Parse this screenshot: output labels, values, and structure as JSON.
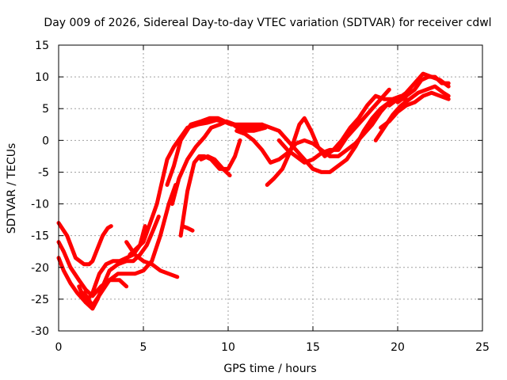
{
  "chart_data": {
    "type": "line",
    "title": "Day 009 of 2026, Sidereal Day-to-day VTEC variation (SDTVAR) for receiver cdwl",
    "xlabel": "GPS time / hours",
    "ylabel": "SDTVAR / TECUs",
    "xlim": [
      0,
      25
    ],
    "ylim": [
      -30,
      15
    ],
    "xticks": [
      "0",
      "5",
      "10",
      "15",
      "20",
      "25"
    ],
    "yticks": [
      "-30",
      "-25",
      "-20",
      "-15",
      "-10",
      "-5",
      "0",
      "5",
      "10",
      "15"
    ],
    "grid": true,
    "legend": "none",
    "color": "#ff0000",
    "series": [
      {
        "name": "trace-1",
        "x": [
          0.0,
          0.5,
          1.0,
          1.5,
          1.8,
          2.0,
          2.3,
          2.6,
          2.9,
          3.1
        ],
        "y": [
          -13,
          -15,
          -18.5,
          -19.5,
          -19.5,
          -19,
          -17,
          -15,
          -13.8,
          -13.5
        ]
      },
      {
        "name": "trace-2",
        "x": [
          0.0,
          0.3,
          0.7,
          1.2,
          1.6,
          2.0,
          2.5,
          3.0,
          3.6,
          4.0
        ],
        "y": [
          -16,
          -17.5,
          -20,
          -22,
          -23.5,
          -24.5,
          -23,
          -22,
          -22,
          -23
        ]
      },
      {
        "name": "trace-3",
        "x": [
          0.0,
          0.3,
          0.7,
          1.1,
          1.6,
          2.0,
          2.3,
          2.6,
          3.0,
          3.5,
          4.0,
          4.4,
          4.8,
          5.2,
          5.6,
          5.9
        ],
        "y": [
          -18.5,
          -20.5,
          -22.5,
          -24,
          -25.5,
          -26.5,
          -25,
          -23,
          -20.5,
          -19.5,
          -19,
          -19,
          -18,
          -16.5,
          -14,
          -12
        ]
      },
      {
        "name": "trace-4",
        "x": [
          1.5,
          2.0,
          2.5,
          3.0,
          3.5,
          4.0,
          4.5,
          5.0,
          5.5,
          6.0,
          6.5,
          6.9
        ],
        "y": [
          -24,
          -26,
          -24,
          -22,
          -21,
          -21,
          -21,
          -20.5,
          -19,
          -15,
          -10,
          -7
        ]
      },
      {
        "name": "trace-5",
        "x": [
          1.2,
          1.6,
          2.0,
          2.4,
          2.8,
          3.2,
          3.6,
          4.0,
          4.4,
          4.8,
          5.1
        ],
        "y": [
          -23,
          -25.5,
          -24,
          -21,
          -19.5,
          -19,
          -19,
          -18.5,
          -18,
          -16.5,
          -13.5
        ]
      },
      {
        "name": "trace-6",
        "x": [
          4.0,
          4.5,
          5.0,
          5.5,
          6.0,
          6.5,
          7.0
        ],
        "y": [
          -16,
          -18,
          -19,
          -19.5,
          -20.5,
          -21,
          -21.5
        ]
      },
      {
        "name": "trace-7",
        "x": [
          4.2,
          4.6,
          5.0,
          5.4,
          5.8,
          6.1,
          6.4,
          6.8,
          7.2,
          7.6,
          8.2,
          8.8,
          9.3,
          9.7,
          10.2,
          10.8,
          11.5,
          12.0
        ],
        "y": [
          -18,
          -17,
          -16,
          -13,
          -10,
          -6.5,
          -3,
          -1,
          0.5,
          2,
          2.5,
          2.8,
          3.2,
          3.0,
          2.5,
          2.5,
          2.5,
          2.5
        ]
      },
      {
        "name": "trace-8",
        "x": [
          6.4,
          6.8,
          7.2,
          7.8,
          8.4,
          8.9,
          9.4,
          9.8,
          10.3,
          10.8,
          11.5,
          12.2
        ],
        "y": [
          -7,
          -4,
          0,
          2.5,
          3.0,
          3.5,
          3.5,
          3.0,
          2.5,
          1.5,
          1.5,
          2.0
        ]
      },
      {
        "name": "trace-9",
        "x": [
          6.7,
          7.1,
          7.6,
          8.1,
          8.6,
          9.0,
          9.5,
          9.9,
          10.4,
          10.9,
          11.5,
          12.0
        ],
        "y": [
          -10,
          -6,
          -3,
          -1,
          0.5,
          2.0,
          2.5,
          3.0,
          2.5,
          2.0,
          2.0,
          2.0
        ]
      },
      {
        "name": "trace-10",
        "x": [
          7.2,
          7.6,
          8.0,
          8.3,
          8.6,
          9.0,
          9.5,
          10.0,
          10.4,
          10.7
        ],
        "y": [
          -15,
          -8,
          -3.5,
          -2.5,
          -2.5,
          -3.0,
          -4.5,
          -4.5,
          -2.5,
          0.0
        ]
      },
      {
        "name": "trace-11",
        "x": [
          7.3,
          7.6,
          7.9
        ],
        "y": [
          -13.5,
          -13.8,
          -14.2
        ]
      },
      {
        "name": "trace-12",
        "x": [
          8.4,
          8.8,
          9.2,
          9.7,
          10.1
        ],
        "y": [
          -3,
          -2.5,
          -3,
          -4.5,
          -5.5
        ]
      },
      {
        "name": "trace-13",
        "x": [
          10.5,
          11.0,
          11.5,
          12.0,
          12.5,
          13.0,
          13.5,
          14.0,
          14.5,
          15.0,
          15.5,
          16.0,
          16.5,
          17.0,
          17.5,
          18.0,
          18.5,
          19.0,
          19.5,
          20.0
        ],
        "y": [
          1.5,
          1.0,
          0.0,
          -1.5,
          -3.5,
          -3.0,
          -2.0,
          -0.5,
          0.0,
          -0.5,
          -1.5,
          -2.5,
          -2.5,
          -1.5,
          -0.5,
          1.0,
          2.5,
          4.5,
          6.0,
          6.5
        ]
      },
      {
        "name": "trace-14",
        "x": [
          11.5,
          12.0,
          12.5,
          13.0,
          13.5,
          14.0,
          14.5,
          15.0,
          15.5,
          16.0,
          16.5,
          17.0,
          17.5,
          18.0,
          18.5,
          19.0,
          19.5,
          20.0,
          20.5
        ],
        "y": [
          2.0,
          2.5,
          2.0,
          1.5,
          0.0,
          -1.5,
          -3.0,
          -4.5,
          -5.0,
          -5.0,
          -4.0,
          -3.0,
          -1.0,
          1.5,
          3.5,
          5.0,
          6.0,
          6.5,
          6.5
        ]
      },
      {
        "name": "trace-15",
        "x": [
          12.3,
          12.7,
          13.2,
          13.7,
          14.2,
          14.5,
          14.9,
          15.3,
          15.7,
          16.2,
          16.7,
          17.2,
          17.7,
          18.2,
          18.7,
          19.2,
          19.7,
          20.2
        ],
        "y": [
          -7.0,
          -6.0,
          -4.5,
          -1.5,
          2.5,
          3.5,
          1.5,
          -1.0,
          -2.5,
          -1.5,
          0.0,
          2.0,
          3.5,
          5.5,
          7.0,
          6.5,
          6.5,
          7.0
        ]
      },
      {
        "name": "trace-16",
        "x": [
          13.0,
          13.5,
          14.0,
          14.5,
          15.0,
          15.5,
          16.0,
          16.5,
          17.0,
          17.5,
          18.0,
          18.5,
          19.0,
          19.5
        ],
        "y": [
          0.0,
          -1.5,
          -2.5,
          -3.5,
          -3.0,
          -2.0,
          -1.5,
          -1.5,
          0.5,
          2.0,
          3.5,
          5.0,
          6.5,
          8.0
        ]
      },
      {
        "name": "trace-17",
        "x": [
          18.7,
          19.2,
          19.7,
          20.2,
          20.7,
          21.2,
          21.7,
          22.2,
          22.7,
          23.0
        ],
        "y": [
          0.0,
          2.0,
          4.0,
          5.5,
          6.5,
          7.5,
          8.0,
          8.5,
          7.5,
          7.0
        ]
      },
      {
        "name": "trace-18",
        "x": [
          19.0,
          19.5,
          20.0,
          20.5,
          21.0,
          21.5,
          22.0,
          22.5,
          23.0
        ],
        "y": [
          2.0,
          3.0,
          4.5,
          5.5,
          6.0,
          7.0,
          7.5,
          7.0,
          6.5
        ]
      },
      {
        "name": "trace-19",
        "x": [
          19.5,
          20.0,
          20.5,
          21.0,
          21.5,
          22.0,
          22.5,
          23.0
        ],
        "y": [
          5.5,
          6.5,
          7.5,
          9.0,
          10.5,
          10.0,
          9.5,
          8.5
        ]
      },
      {
        "name": "trace-20",
        "x": [
          20.0,
          20.5,
          21.0,
          21.4,
          21.8,
          22.2,
          22.6,
          23.0
        ],
        "y": [
          6.0,
          7.0,
          8.0,
          9.5,
          10.0,
          10.0,
          9.0,
          9.0
        ]
      }
    ]
  }
}
